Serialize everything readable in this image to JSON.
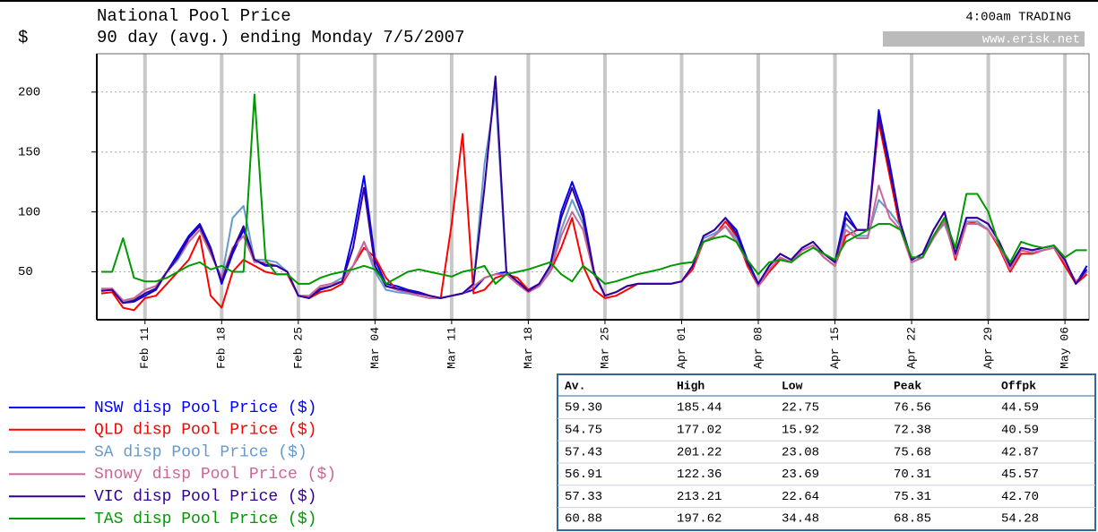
{
  "chart_data": {
    "type": "line",
    "title": "National Pool Price",
    "subtitle": "90 day (avg.) ending Monday 7/5/2007",
    "y_label": "$",
    "status": "4:00am TRADING",
    "source": "www.erisk.net",
    "x": [
      1,
      2,
      3,
      4,
      5,
      6,
      7,
      8,
      9,
      10,
      11,
      12,
      13,
      14,
      15,
      16,
      17,
      18,
      19,
      20,
      21,
      22,
      23,
      24,
      25,
      26,
      27,
      28,
      29,
      30,
      31,
      32,
      33,
      34,
      35,
      36,
      37,
      38,
      39,
      40,
      41,
      42,
      43,
      44,
      45,
      46,
      47,
      48,
      49,
      50,
      51,
      52,
      53,
      54,
      55,
      56,
      57,
      58,
      59,
      60,
      61,
      62,
      63,
      64,
      65,
      66,
      67,
      68,
      69,
      70,
      71,
      72,
      73,
      74,
      75,
      76,
      77,
      78,
      79,
      80,
      81,
      82,
      83,
      84,
      85,
      86,
      87,
      88,
      89,
      90,
      91
    ],
    "xlim": [
      0.6,
      91.2
    ],
    "xticks": [
      {
        "value": 5,
        "label": "Feb 11"
      },
      {
        "value": 12,
        "label": "Feb 18"
      },
      {
        "value": 19,
        "label": "Feb 25"
      },
      {
        "value": 26,
        "label": "Mar 04"
      },
      {
        "value": 33,
        "label": "Mar 11"
      },
      {
        "value": 40,
        "label": "Mar 18"
      },
      {
        "value": 47,
        "label": "Mar 25"
      },
      {
        "value": 54,
        "label": "Apr 01"
      },
      {
        "value": 61,
        "label": "Apr 08"
      },
      {
        "value": 68,
        "label": "Apr 15"
      },
      {
        "value": 75,
        "label": "Apr 22"
      },
      {
        "value": 82,
        "label": "Apr 29"
      },
      {
        "value": 89,
        "label": "May 06"
      }
    ],
    "ylim": [
      10,
      232
    ],
    "yticks": [
      50,
      100,
      150,
      200
    ],
    "grid": true,
    "series": [
      {
        "name": "NSW disp Pool Price ($)",
        "color": "#0000ff",
        "values": [
          35,
          35,
          24,
          25,
          30,
          35,
          50,
          65,
          80,
          90,
          70,
          40,
          65,
          85,
          60,
          55,
          55,
          50,
          30,
          28,
          35,
          38,
          42,
          80,
          130,
          60,
          40,
          38,
          35,
          33,
          30,
          28,
          30,
          32,
          35,
          45,
          48,
          50,
          42,
          35,
          40,
          55,
          100,
          125,
          100,
          50,
          30,
          33,
          38,
          40,
          40,
          40,
          40,
          42,
          55,
          80,
          85,
          95,
          85,
          60,
          40,
          55,
          65,
          60,
          70,
          75,
          65,
          58,
          100,
          85,
          85,
          185,
          140,
          90,
          60,
          65,
          85,
          100,
          65,
          95,
          95,
          90,
          75,
          55,
          70,
          68,
          70,
          72,
          60,
          40,
          55
        ]
      },
      {
        "name": "QLD disp Pool Price ($)",
        "color": "#ff0000",
        "values": [
          32,
          33,
          20,
          18,
          28,
          30,
          40,
          50,
          60,
          80,
          30,
          20,
          50,
          60,
          55,
          50,
          48,
          48,
          30,
          28,
          33,
          35,
          40,
          55,
          70,
          62,
          45,
          35,
          33,
          32,
          30,
          28,
          90,
          165,
          32,
          35,
          45,
          48,
          45,
          35,
          38,
          50,
          70,
          95,
          55,
          35,
          28,
          30,
          35,
          40,
          40,
          40,
          40,
          42,
          52,
          75,
          80,
          92,
          80,
          55,
          38,
          50,
          60,
          58,
          68,
          72,
          62,
          55,
          80,
          85,
          85,
          175,
          130,
          85,
          58,
          62,
          80,
          95,
          60,
          90,
          92,
          85,
          70,
          50,
          65,
          65,
          68,
          70,
          55,
          40,
          48
        ]
      },
      {
        "name": "SA disp Pool Price ($)",
        "color": "#6699cc",
        "values": [
          35,
          36,
          25,
          27,
          35,
          38,
          50,
          60,
          75,
          85,
          65,
          45,
          95,
          105,
          60,
          60,
          58,
          50,
          30,
          30,
          38,
          40,
          45,
          55,
          75,
          50,
          35,
          33,
          32,
          30,
          28,
          28,
          30,
          32,
          40,
          140,
          200,
          48,
          40,
          33,
          38,
          52,
          85,
          110,
          90,
          48,
          30,
          33,
          38,
          40,
          40,
          40,
          40,
          42,
          55,
          78,
          82,
          88,
          78,
          58,
          38,
          52,
          62,
          58,
          68,
          72,
          62,
          55,
          90,
          80,
          80,
          110,
          100,
          88,
          58,
          62,
          80,
          90,
          65,
          92,
          92,
          85,
          72,
          52,
          68,
          66,
          68,
          70,
          58,
          42,
          50
        ]
      },
      {
        "name": "Snowy disp Pool Price ($)",
        "color": "#cc6699",
        "values": [
          36,
          36,
          26,
          28,
          35,
          38,
          50,
          62,
          75,
          85,
          65,
          45,
          70,
          80,
          58,
          58,
          55,
          50,
          30,
          30,
          38,
          40,
          42,
          55,
          75,
          55,
          38,
          35,
          33,
          30,
          28,
          28,
          30,
          32,
          38,
          45,
          48,
          48,
          40,
          33,
          38,
          50,
          80,
          100,
          85,
          48,
          30,
          33,
          38,
          40,
          40,
          40,
          40,
          42,
          55,
          75,
          80,
          88,
          75,
          58,
          38,
          52,
          62,
          58,
          68,
          72,
          62,
          55,
          85,
          78,
          78,
          122,
          95,
          85,
          58,
          62,
          78,
          92,
          62,
          90,
          90,
          85,
          72,
          52,
          68,
          66,
          68,
          70,
          58,
          42,
          50
        ]
      },
      {
        "name": "VIC disp Pool Price ($)",
        "color": "#330099",
        "values": [
          34,
          35,
          24,
          26,
          32,
          36,
          50,
          62,
          78,
          88,
          68,
          42,
          68,
          88,
          60,
          56,
          55,
          50,
          30,
          28,
          36,
          38,
          42,
          70,
          120,
          55,
          38,
          36,
          34,
          32,
          30,
          28,
          30,
          32,
          40,
          120,
          213,
          50,
          42,
          34,
          40,
          55,
          95,
          120,
          95,
          50,
          30,
          33,
          38,
          40,
          40,
          40,
          40,
          42,
          55,
          80,
          85,
          95,
          82,
          58,
          40,
          55,
          65,
          60,
          70,
          75,
          65,
          58,
          95,
          85,
          85,
          180,
          135,
          90,
          60,
          65,
          85,
          100,
          65,
          95,
          95,
          90,
          75,
          55,
          70,
          68,
          70,
          72,
          60,
          40,
          52
        ]
      },
      {
        "name": "TAS disp Pool Price ($)",
        "color": "#009900",
        "values": [
          50,
          50,
          78,
          45,
          42,
          42,
          45,
          50,
          55,
          58,
          52,
          55,
          50,
          50,
          198,
          60,
          48,
          48,
          40,
          40,
          45,
          48,
          50,
          52,
          55,
          52,
          40,
          45,
          50,
          52,
          50,
          48,
          46,
          50,
          52,
          55,
          40,
          48,
          50,
          52,
          55,
          58,
          48,
          42,
          55,
          48,
          40,
          42,
          45,
          48,
          50,
          52,
          55,
          57,
          58,
          75,
          78,
          80,
          75,
          60,
          48,
          58,
          60,
          58,
          65,
          70,
          65,
          60,
          75,
          80,
          85,
          90,
          90,
          85,
          62,
          62,
          80,
          95,
          70,
          115,
          115,
          100,
          72,
          58,
          75,
          72,
          70,
          72,
          62,
          68,
          68
        ]
      }
    ],
    "stats": {
      "columns": [
        "Av.",
        "High",
        "Low",
        "Peak",
        "Offpk"
      ],
      "rows": [
        [
          "59.30",
          "185.44",
          "22.75",
          "76.56",
          "44.59"
        ],
        [
          "54.75",
          "177.02",
          "15.92",
          "72.38",
          "40.59"
        ],
        [
          "57.43",
          "201.22",
          "23.08",
          "75.68",
          "42.87"
        ],
        [
          "56.91",
          "122.36",
          "23.69",
          "70.31",
          "45.57"
        ],
        [
          "57.33",
          "213.21",
          "22.64",
          "75.31",
          "42.70"
        ],
        [
          "60.88",
          "197.62",
          "34.48",
          "68.85",
          "54.28"
        ]
      ]
    }
  }
}
